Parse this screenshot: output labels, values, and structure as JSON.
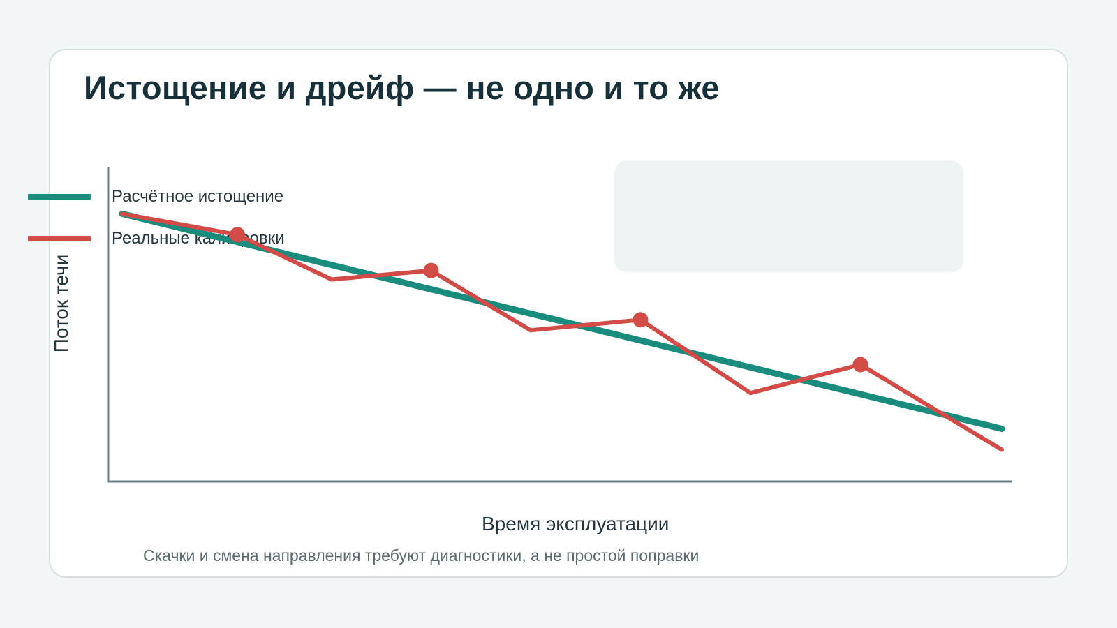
{
  "title": "Истощение и дрейф — не одно и то же",
  "caption": "Скачки и смена направления требуют диагностики, а не простой поправки",
  "colors": {
    "background": "#f3f6f7",
    "card": "#ffffff",
    "legend_bg": "#eef3f3",
    "axis": "#6d7f85",
    "teal": "#1a8c7e",
    "red": "#d24b47",
    "text": "#24363d"
  },
  "chart_data": {
    "type": "line",
    "title": "",
    "xlabel": "Время эксплуатации",
    "ylabel": "Поток течи",
    "xlim": [
      0,
      8.4
    ],
    "ylim": [
      0,
      10
    ],
    "grid": false,
    "axis_ticks": false,
    "legend_position": "top-right",
    "series": [
      {
        "name": "Расчётное истощение",
        "color": "#1a8c7e",
        "x": [
          0,
          8.4
        ],
        "y": [
          8.8,
          1.6
        ],
        "markers": []
      },
      {
        "name": "Реальные калибровки",
        "color": "#d24b47",
        "x": [
          0,
          1.1,
          2.0,
          2.95,
          3.9,
          4.95,
          6.0,
          7.05,
          8.4
        ],
        "y": [
          8.8,
          8.1,
          6.6,
          6.9,
          4.9,
          5.25,
          2.8,
          3.75,
          0.9
        ],
        "markers": [
          1,
          3,
          5,
          7
        ]
      }
    ]
  }
}
